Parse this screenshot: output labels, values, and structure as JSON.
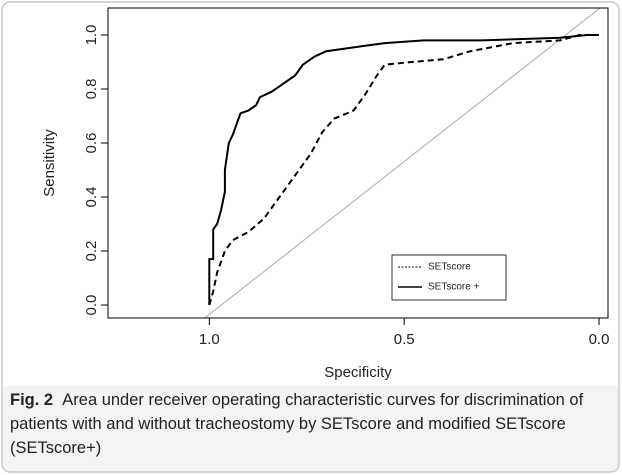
{
  "chart_data": {
    "type": "line",
    "xlabel": "Specificity",
    "ylabel": "Sensitivity",
    "xlim": [
      1.26,
      -0.023
    ],
    "ylim": [
      -0.048,
      1.1
    ],
    "xticks": [
      {
        "value": 1,
        "label": "1.0"
      },
      {
        "value": 0.5,
        "label": "0.5"
      },
      {
        "value": 0,
        "label": "0.0"
      }
    ],
    "yticks": [
      {
        "value": 0,
        "label": "0.0"
      },
      0.2,
      0.4,
      0.6,
      0.8,
      {
        "value": 1,
        "label": "1.0"
      }
    ],
    "legend": "lower right",
    "series": [
      {
        "name": "SETscore",
        "color": "#000000",
        "dash": "dashed",
        "x": [
          1.0,
          0.99,
          0.98,
          0.96,
          0.94,
          0.9,
          0.86,
          0.82,
          0.78,
          0.74,
          0.71,
          0.68,
          0.63,
          0.6,
          0.57,
          0.55,
          0.48,
          0.4,
          0.33,
          0.22,
          0.1,
          0.05,
          0.0
        ],
        "values": [
          0,
          0.05,
          0.12,
          0.2,
          0.24,
          0.27,
          0.32,
          0.4,
          0.48,
          0.56,
          0.64,
          0.69,
          0.72,
          0.78,
          0.85,
          0.89,
          0.9,
          0.91,
          0.94,
          0.97,
          0.98,
          1.0,
          1.0
        ]
      },
      {
        "name": "SETscore +",
        "color": "#000000",
        "dash": "solid",
        "x": [
          1.0,
          1.0,
          0.99,
          0.99,
          0.98,
          0.97,
          0.96,
          0.96,
          0.95,
          0.94,
          0.93,
          0.92,
          0.9,
          0.88,
          0.87,
          0.84,
          0.81,
          0.78,
          0.76,
          0.73,
          0.7,
          0.65,
          0.6,
          0.55,
          0.45,
          0.3,
          0.1,
          0.03,
          0.0
        ],
        "values": [
          0,
          0.17,
          0.17,
          0.28,
          0.3,
          0.35,
          0.42,
          0.5,
          0.6,
          0.63,
          0.67,
          0.71,
          0.72,
          0.74,
          0.77,
          0.79,
          0.82,
          0.85,
          0.89,
          0.92,
          0.94,
          0.95,
          0.96,
          0.97,
          0.98,
          0.98,
          0.99,
          1.0,
          1.0
        ]
      }
    ]
  },
  "caption": {
    "label": "Fig. 2",
    "text": "Area under receiver operating characteristic curves for dis­crimination of patients with and without tracheostomy by SETscore and modified SETscore (SETscore+)"
  }
}
